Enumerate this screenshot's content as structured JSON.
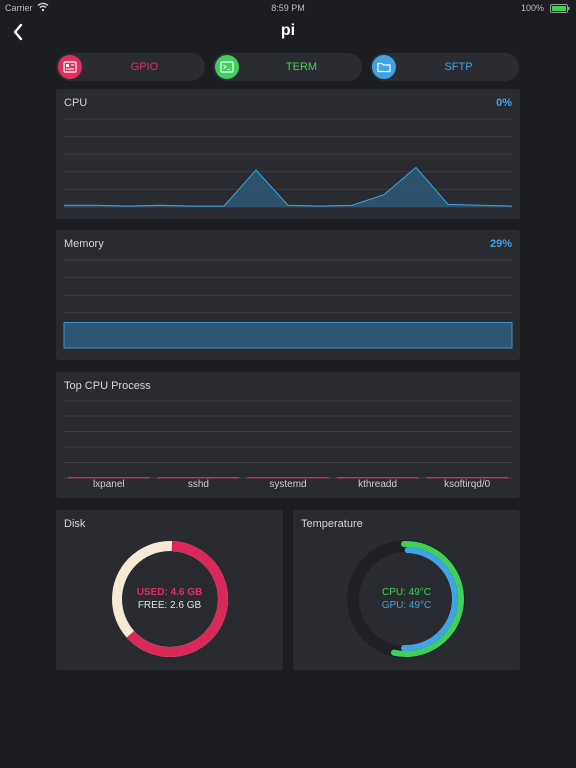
{
  "status": {
    "carrier": "Carrier",
    "time": "8:59 PM",
    "battery": "100%"
  },
  "nav": {
    "title": "pi"
  },
  "actions": [
    {
      "label": "GPIO",
      "color": "#e0305f",
      "icon": "gpio-icon"
    },
    {
      "label": "TERM",
      "color": "#3fd05c",
      "icon": "terminal-icon"
    },
    {
      "label": "SFTP",
      "color": "#3fa3e6",
      "icon": "folder-icon"
    }
  ],
  "cpu": {
    "title": "CPU",
    "value": "0%",
    "series": [
      2,
      2,
      1,
      2,
      1,
      1,
      42,
      2,
      1,
      2,
      14,
      45,
      3,
      2,
      1
    ]
  },
  "memory": {
    "title": "Memory",
    "value": "29%",
    "level": 29
  },
  "top_process": {
    "title": "Top CPU Process",
    "processes": [
      "lxpanel",
      "sshd",
      "systemd",
      "kthreadd",
      "ksoftirqd/0"
    ]
  },
  "disk": {
    "title": "Disk",
    "used": "USED: 4.6 GB",
    "free": "FREE: 2.6 GB",
    "used_fraction": 0.64,
    "used_color": "#d9285a",
    "free_color": "#f6e9d6"
  },
  "temperature": {
    "title": "Temperature",
    "cpu": "CPU: 49°C",
    "gpu": "GPU: 49°C",
    "cpu_fraction": 0.54,
    "gpu_fraction": 0.5,
    "cpu_color": "#3fd05c",
    "gpu_color": "#3fa3e6"
  }
}
